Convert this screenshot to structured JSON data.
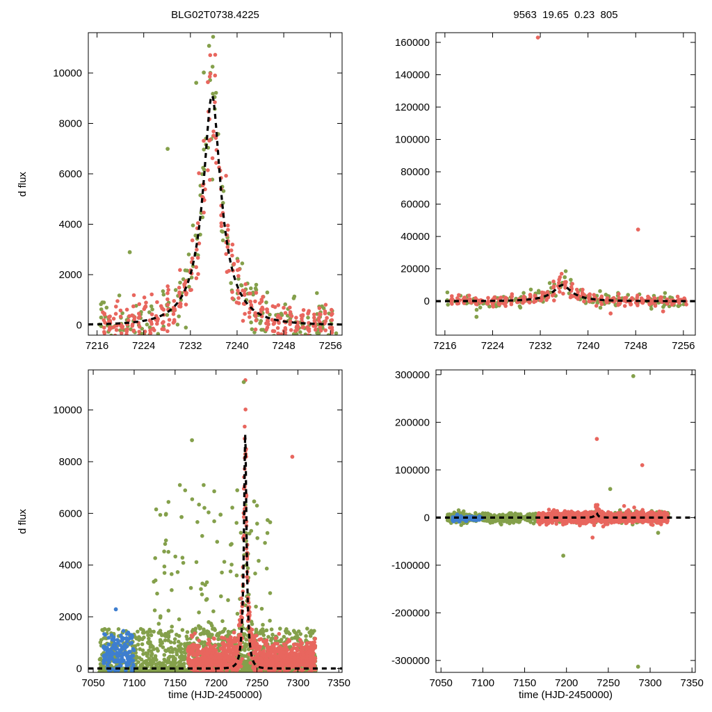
{
  "page": {
    "background": "#ffffff"
  },
  "header": {
    "title_left": "BLG02T0738.4225",
    "title_right": "9563  19.65  0.23  805"
  },
  "axis_labels": {
    "ylabel": "d flux",
    "xlabel": "time (HJD-2450000)"
  },
  "colors": {
    "red": "#e8665e",
    "green": "#84a04b",
    "blue": "#3e7ecf",
    "model": "#000000",
    "frame": "#000000"
  },
  "seed": 1337,
  "chart_data": [
    {
      "id": "top-left",
      "type": "scatter",
      "title": "BLG02T0738.4225",
      "xlabel": "",
      "ylabel": "d flux",
      "xlim": [
        7214.5,
        7258
      ],
      "ylim": [
        -400,
        11600
      ],
      "xticks": [
        7216,
        7224,
        7232,
        7240,
        7248,
        7256
      ],
      "yticks": [
        0,
        2000,
        4000,
        6000,
        8000,
        10000
      ],
      "grid": false,
      "legend": "none",
      "model": {
        "type": "paczynski",
        "t0": 7235.7,
        "tE": 6.0,
        "u0": 0.23,
        "fs": 2650,
        "f0": 0,
        "dashed": true
      },
      "clusters": [
        {
          "kind": "uniform",
          "color": "green",
          "n": 230,
          "x_min": 7216,
          "x_max": 7257,
          "noise": 520,
          "noise_model_frac": 0.13,
          "follow_model": true
        },
        {
          "kind": "nightly",
          "color": "red",
          "x_start": 7217.2,
          "x_end": 7256.6,
          "step": 1,
          "per_night": 9,
          "x_jitter": 0.14,
          "noise": 380,
          "noise_model_frac": 0.1,
          "follow_model": true
        }
      ],
      "outliers": [
        {
          "color": "green",
          "x": 7235.2,
          "y": 11080
        },
        {
          "color": "green",
          "x": 7234.3,
          "y": 10020
        },
        {
          "color": "green",
          "x": 7233.0,
          "y": 9610
        },
        {
          "color": "red",
          "x": 7235.0,
          "y": 9640
        },
        {
          "color": "green",
          "x": 7228.1,
          "y": 6990
        },
        {
          "color": "green",
          "x": 7221.6,
          "y": 2890
        }
      ]
    },
    {
      "id": "top-right",
      "type": "scatter",
      "title": "9563  19.65  0.23  805",
      "xlabel": "",
      "ylabel": "",
      "xlim": [
        7214.5,
        7258
      ],
      "ylim": [
        -21000,
        166000
      ],
      "xticks": [
        7216,
        7224,
        7232,
        7240,
        7248,
        7256
      ],
      "yticks": [
        0,
        20000,
        40000,
        60000,
        80000,
        100000,
        120000,
        140000,
        160000
      ],
      "grid": false,
      "legend": "none",
      "model": {
        "type": "paczynski",
        "t0": 7235.7,
        "tE": 6.0,
        "u0": 0.23,
        "fs": 2900,
        "f0": 0,
        "dashed": true
      },
      "clusters": [
        {
          "kind": "uniform",
          "color": "green",
          "n": 170,
          "x_min": 7216,
          "x_max": 7257,
          "noise": 2300,
          "noise_model_frac": 0.15,
          "follow_model": true
        },
        {
          "kind": "nightly",
          "color": "red",
          "x_start": 7217.2,
          "x_end": 7256.6,
          "step": 1,
          "per_night": 7,
          "x_jitter": 0.14,
          "noise": 1500,
          "noise_model_frac": 0.18,
          "follow_model": true
        }
      ],
      "outliers": [
        {
          "color": "red",
          "x": 7231.6,
          "y": 163000
        },
        {
          "color": "red",
          "x": 7248.4,
          "y": 44300
        },
        {
          "color": "green",
          "x": 7221.3,
          "y": -9700
        },
        {
          "color": "red",
          "x": 7243.8,
          "y": -7600
        },
        {
          "color": "red",
          "x": 7252.6,
          "y": -6300
        },
        {
          "color": "green",
          "x": 7236.1,
          "y": 14800
        }
      ]
    },
    {
      "id": "bottom-left",
      "type": "scatter",
      "title": "",
      "xlabel": "time (HJD-2450000)",
      "ylabel": "d flux",
      "xlim": [
        7044,
        7354
      ],
      "ylim": [
        -150,
        11550
      ],
      "xticks": [
        7050,
        7100,
        7150,
        7200,
        7250,
        7300,
        7350
      ],
      "yticks": [
        0,
        2000,
        4000,
        6000,
        8000,
        10000
      ],
      "grid": false,
      "legend": "none",
      "model": {
        "type": "paczynski",
        "t0": 7235.7,
        "tE": 6.0,
        "u0": 0.23,
        "fs": 2650,
        "f0": 0,
        "dashed": true
      },
      "clusters": [
        {
          "kind": "band",
          "color": "green",
          "n": 1500,
          "x_min": 7058,
          "x_max": 7322,
          "y_min": -120,
          "y_max": 1550,
          "bias": 2.6,
          "x_quant": 1,
          "x_jitter": 0.16
        },
        {
          "kind": "band",
          "color": "green",
          "n": 110,
          "x_min": 7120,
          "x_max": 7268,
          "y_min": 1300,
          "y_max": 7100,
          "bias": 1.7,
          "x_quant": 1,
          "x_jitter": 0.2
        },
        {
          "kind": "uniform",
          "color": "green",
          "n": 70,
          "x_min": 7222,
          "x_max": 7250,
          "noise": 720,
          "noise_model_frac": 0.18,
          "follow_model": true
        },
        {
          "kind": "nightly",
          "color": "red",
          "x_start": 7166,
          "x_end": 7321,
          "step": 1,
          "per_night": 7,
          "x_jitter": 0.15,
          "noise": 360,
          "noise_model_frac": 0.12,
          "follow_model": true,
          "y_base": 330
        },
        {
          "kind": "nightly",
          "color": "blue",
          "x_start": 7063,
          "x_end": 7099,
          "step": 2,
          "per_night": 9,
          "x_jitter": 0.45,
          "noise": 430,
          "y_base": 520,
          "follow_model": false
        }
      ],
      "outliers": [
        {
          "color": "green",
          "x": 7170.6,
          "y": 8830
        },
        {
          "color": "green",
          "x": 7157.9,
          "y": 5860
        },
        {
          "color": "green",
          "x": 7205.5,
          "y": 5950
        },
        {
          "color": "red",
          "x": 7293.2,
          "y": 8190
        },
        {
          "color": "green",
          "x": 7263.0,
          "y": 5740
        },
        {
          "color": "green",
          "x": 7233.9,
          "y": 11080
        },
        {
          "color": "green",
          "x": 7246.6,
          "y": 6460
        },
        {
          "color": "blue",
          "x": 7077.6,
          "y": 2290
        }
      ]
    },
    {
      "id": "bottom-right",
      "type": "scatter",
      "title": "",
      "xlabel": "time (HJD-2450000)",
      "ylabel": "",
      "xlim": [
        7044,
        7354
      ],
      "ylim": [
        -325000,
        310000
      ],
      "xticks": [
        7050,
        7100,
        7150,
        7200,
        7250,
        7300,
        7350
      ],
      "yticks": [
        -300000,
        -200000,
        -100000,
        0,
        100000,
        200000,
        300000
      ],
      "grid": false,
      "legend": "none",
      "model": {
        "type": "paczynski",
        "t0": 7235.7,
        "tE": 6.0,
        "u0": 0.23,
        "fs": 2900,
        "f0": 0,
        "dashed": true
      },
      "clusters": [
        {
          "kind": "uniform",
          "color": "green",
          "n": 850,
          "x_min": 7058,
          "x_max": 7322,
          "noise": 5200,
          "follow_model": false,
          "x_quant": 1,
          "x_jitter": 0.16
        },
        {
          "kind": "nightly",
          "color": "red",
          "x_start": 7166,
          "x_end": 7321,
          "step": 1,
          "per_night": 6,
          "x_jitter": 0.15,
          "noise": 6000,
          "noise_model_frac": 0.6,
          "follow_model": true
        },
        {
          "kind": "uniform",
          "color": "blue",
          "n": 90,
          "x_min": 7063,
          "x_max": 7099,
          "noise": 3000,
          "y_base": -1500,
          "follow_model": false,
          "x_quant": 1,
          "x_jitter": 0.3
        }
      ],
      "outliers": [
        {
          "color": "red",
          "x": 7236.3,
          "y": 165000
        },
        {
          "color": "red",
          "x": 7290.6,
          "y": 110000
        },
        {
          "color": "green",
          "x": 7279.9,
          "y": 297000
        },
        {
          "color": "green",
          "x": 7285.6,
          "y": -313000
        },
        {
          "color": "green",
          "x": 7196.2,
          "y": -80000
        },
        {
          "color": "green",
          "x": 7252.3,
          "y": 60000
        },
        {
          "color": "red",
          "x": 7231.2,
          "y": -42000
        },
        {
          "color": "green",
          "x": 7309.5,
          "y": -32000
        }
      ]
    }
  ]
}
